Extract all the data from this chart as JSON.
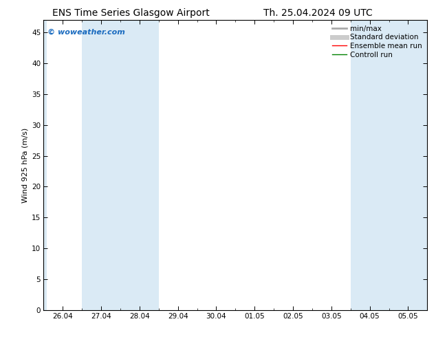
{
  "title_left": "ENS Time Series Glasgow Airport",
  "title_right": "Th. 25.04.2024 09 UTC",
  "ylabel": "Wind 925 hPa (m/s)",
  "watermark": "© woweather.com",
  "ylim": [
    0,
    47
  ],
  "yticks": [
    0,
    5,
    10,
    15,
    20,
    25,
    30,
    35,
    40,
    45
  ],
  "xtick_labels": [
    "26.04",
    "27.04",
    "28.04",
    "29.04",
    "30.04",
    "01.05",
    "02.05",
    "03.05",
    "04.05",
    "05.05"
  ],
  "n_xticks": 10,
  "shaded_color": "#daeaf5",
  "legend_entries": [
    {
      "label": "min/max",
      "color": "#aaaaaa",
      "lw": 2
    },
    {
      "label": "Standard deviation",
      "color": "#cccccc",
      "lw": 5
    },
    {
      "label": "Ensemble mean run",
      "color": "red",
      "lw": 1
    },
    {
      "label": "Controll run",
      "color": "green",
      "lw": 1
    }
  ],
  "bg_color": "#ffffff",
  "plot_bg_color": "#ffffff",
  "border_color": "#000000",
  "watermark_color": "#1a6bbf",
  "title_fontsize": 10,
  "label_fontsize": 8,
  "tick_fontsize": 7.5,
  "watermark_fontsize": 8
}
